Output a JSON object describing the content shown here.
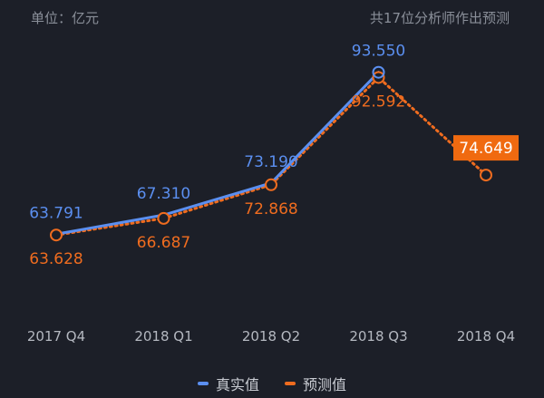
{
  "header": {
    "unit": "单位：亿元",
    "note": "共17位分析师作出预测"
  },
  "colors": {
    "background": "#1c1f28",
    "actual": "#5b8ff0",
    "forecast": "#ef6c1f",
    "forecast_highlight_bg": "#f06a10",
    "tick_text": "#b4b8c0",
    "muted_text": "#8a8f99"
  },
  "chart_data": {
    "type": "line",
    "categories": [
      "2017 Q4",
      "2018 Q1",
      "2018 Q2",
      "2018 Q3",
      "2018 Q4"
    ],
    "ylim": [
      50,
      100
    ],
    "grid": false,
    "legend_position": "bottom-center",
    "series": [
      {
        "name": "真实值",
        "values": [
          63.791,
          67.31,
          73.19,
          93.55,
          null
        ],
        "labels": [
          "63.791",
          "67.310",
          "73.190",
          "93.550",
          null
        ],
        "color": "#5b8ff0",
        "style": "solid"
      },
      {
        "name": "预测值",
        "values": [
          63.628,
          66.687,
          72.868,
          92.592,
          74.649
        ],
        "labels": [
          "63.628",
          "66.687",
          "72.868",
          "92.592",
          "74.649"
        ],
        "color": "#ef6c1f",
        "style": "dotted",
        "highlight_last": true
      }
    ]
  }
}
